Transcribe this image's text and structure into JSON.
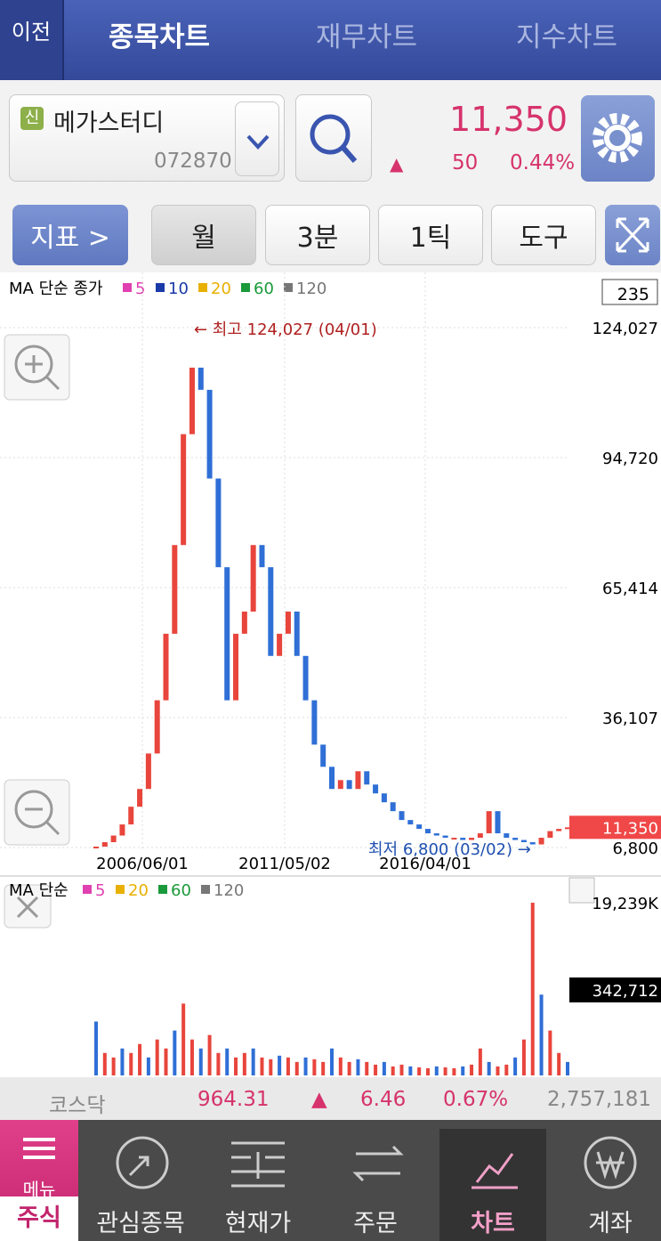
{
  "header": {
    "back": "이전",
    "tabs": [
      "종목차트",
      "재무차트",
      "지수차트"
    ]
  },
  "stock": {
    "badge": "신",
    "name": "메가스터디",
    "code": "072870",
    "price": "11,350",
    "arrow": "▲",
    "change": "50",
    "change_pct": "0.44%"
  },
  "toolbar": {
    "indicator": "지표 >",
    "buttons": [
      "월",
      "3분",
      "1틱",
      "도구"
    ]
  },
  "chart_data": [
    {
      "type": "candlestick",
      "legend_title": "MA 단순 종가",
      "ma_legend": [
        {
          "name": "5",
          "color": "#e040b0"
        },
        {
          "name": "10",
          "color": "#1a3aa8"
        },
        {
          "name": "20",
          "color": "#e8b000"
        },
        {
          "name": "60",
          "color": "#1a9a3a"
        },
        {
          "name": "120",
          "color": "#777777"
        }
      ],
      "count_box": "235",
      "max_annotation": "← 최고 124,027 (04/01)",
      "min_annotation": "최저 6,800 (03/02) →",
      "x_labels": [
        "2006/06/01",
        "2011/05/02",
        "2016/04/01"
      ],
      "ylim": [
        6800,
        124027
      ],
      "yticks": [
        {
          "value": 124027,
          "label": "124,027"
        },
        {
          "value": 94720,
          "label": "94,720"
        },
        {
          "value": 65414,
          "label": "65,414"
        },
        {
          "value": 36107,
          "label": "36,107"
        },
        {
          "value": 6800,
          "label": "6,800"
        }
      ],
      "last_value": 11350,
      "last_label": "11,350",
      "up_color": "#e8453c",
      "down_color": "#2f6fd6",
      "values": [
        7000,
        8000,
        9500,
        12000,
        16000,
        20000,
        28000,
        40000,
        55000,
        75000,
        100000,
        115000,
        110000,
        90000,
        70000,
        40000,
        55000,
        60000,
        75000,
        70000,
        50000,
        55000,
        60000,
        50000,
        40000,
        30000,
        25000,
        20000,
        22000,
        20000,
        24000,
        21000,
        19000,
        17000,
        15000,
        13000,
        12000,
        11000,
        10000,
        9500,
        9000,
        9000,
        8500,
        9000,
        10000,
        15000,
        10000,
        9000,
        8500,
        8000,
        7500,
        9000,
        10500,
        11000,
        11350
      ]
    },
    {
      "type": "bar",
      "legend_title": "MA 단순",
      "ma_legend": [
        {
          "name": "5",
          "color": "#e040b0"
        },
        {
          "name": "20",
          "color": "#e8b000"
        },
        {
          "name": "60",
          "color": "#1a9a3a"
        },
        {
          "name": "120",
          "color": "#777777"
        }
      ],
      "ylim": [
        0,
        19239
      ],
      "yticks": [
        {
          "value": 19239,
          "label": "19,239K"
        }
      ],
      "current_label": "342,712",
      "color": "#e8453c",
      "values": [
        6000,
        2500,
        2000,
        3000,
        2500,
        3500,
        2000,
        4000,
        3000,
        5000,
        8000,
        4000,
        3000,
        4500,
        2500,
        3000,
        2000,
        2500,
        3000,
        2000,
        1800,
        2200,
        2000,
        1500,
        2000,
        1800,
        1500,
        3000,
        2000,
        1500,
        1800,
        1500,
        1200,
        1500,
        1000,
        1200,
        1000,
        900,
        800,
        1000,
        900,
        800,
        1000,
        1200,
        3000,
        1500,
        1000,
        1200,
        2000,
        4000,
        19239,
        9000,
        5000,
        2500,
        1500
      ]
    }
  ],
  "index_bar": {
    "name": "코스닥",
    "value": "964.31",
    "arrow": "▲",
    "change": "6.46",
    "change_pct": "0.67%",
    "volume": "2,757,181"
  },
  "nav": {
    "menu": "메뉴",
    "items": [
      "주식",
      "관심종목",
      "현재가",
      "주문",
      "차트",
      "계좌"
    ]
  }
}
